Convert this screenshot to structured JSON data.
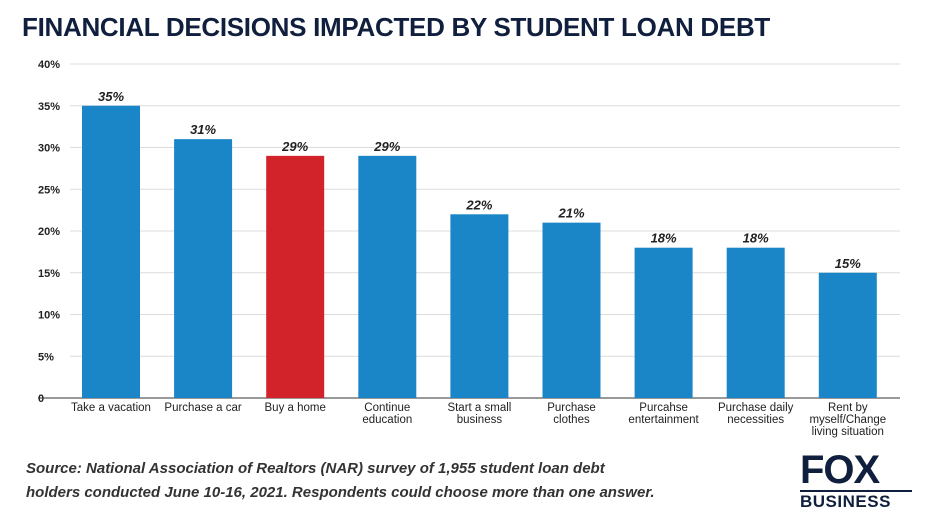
{
  "title": "FINANCIAL DECISIONS IMPACTED BY STUDENT LOAN DEBT",
  "source_line1": "Source: National Association of Realtors (NAR) survey of 1,955 student loan debt",
  "source_line2": "holders conducted June 10-16, 2021. Respondents could choose more than one answer.",
  "logo": {
    "top": "FOX",
    "bottom": "BUSINESS"
  },
  "colors": {
    "bar": "#1a86c7",
    "highlight": "#d2232a",
    "grid": "#dcdcdc",
    "text": "#222222"
  },
  "chart_data": {
    "type": "bar",
    "title": "FINANCIAL DECISIONS IMPACTED BY STUDENT LOAN DEBT",
    "categories": [
      [
        "Take a vacation"
      ],
      [
        "Purchase a car"
      ],
      [
        "Buy a home"
      ],
      [
        "Continue",
        "education"
      ],
      [
        "Start a small",
        "business"
      ],
      [
        "Purchase",
        "clothes"
      ],
      [
        "Purcahse",
        "entertainment"
      ],
      [
        "Purchase daily",
        "necessities"
      ],
      [
        "Rent by",
        "myself/Change",
        "living situation"
      ]
    ],
    "values": [
      35,
      31,
      29,
      29,
      22,
      21,
      18,
      18,
      15
    ],
    "value_labels": [
      "35%",
      "31%",
      "29%",
      "29%",
      "22%",
      "21%",
      "18%",
      "18%",
      "15%"
    ],
    "highlight_index": 2,
    "ylim": [
      0,
      40
    ],
    "yticks": [
      0,
      5,
      10,
      15,
      20,
      25,
      30,
      35,
      40
    ],
    "ytick_labels": [
      "0",
      "5%",
      "10%",
      "15%",
      "20%",
      "25%",
      "30%",
      "35%",
      "40%"
    ],
    "grid": true,
    "xlabel": "",
    "ylabel": ""
  }
}
